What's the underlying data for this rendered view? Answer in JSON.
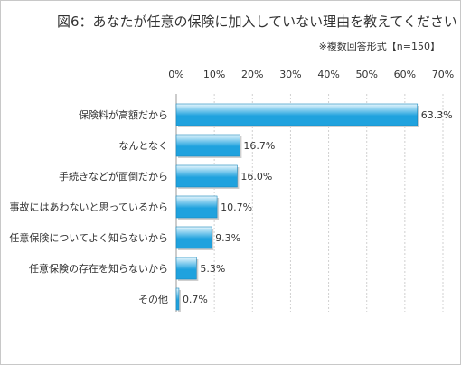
{
  "title": "図6：あなたが任意の保険に加入していない理由を教えてください",
  "note": "※複数回答形式【n=150】",
  "chart_data": {
    "type": "bar",
    "orientation": "horizontal",
    "title": "図6：あなたが任意の保険に加入していない理由を教えてください",
    "categories": [
      "保険料が高額だから",
      "なんとなく",
      "手続きなどが面倒だから",
      "事故にはあわないと思っているから",
      "任意保険についてよく知らないから",
      "任意保険の存在を知らないから",
      "その他"
    ],
    "values": [
      63.3,
      16.7,
      16.0,
      10.7,
      9.3,
      5.3,
      0.7
    ],
    "value_labels": [
      "63.3%",
      "16.7%",
      "16.0%",
      "10.7%",
      "9.3%",
      "5.3%",
      "0.7%"
    ],
    "xlim": [
      0,
      70
    ],
    "ticks": [
      0,
      10,
      20,
      30,
      40,
      50,
      60,
      70
    ],
    "tick_labels": [
      "0%",
      "10%",
      "20%",
      "30%",
      "40%",
      "50%",
      "60%",
      "70%"
    ],
    "grid": true,
    "bar_color": "#1fa2de",
    "bar_highlight": "#e6f6fd",
    "grid_color": "#d0d0d0"
  }
}
